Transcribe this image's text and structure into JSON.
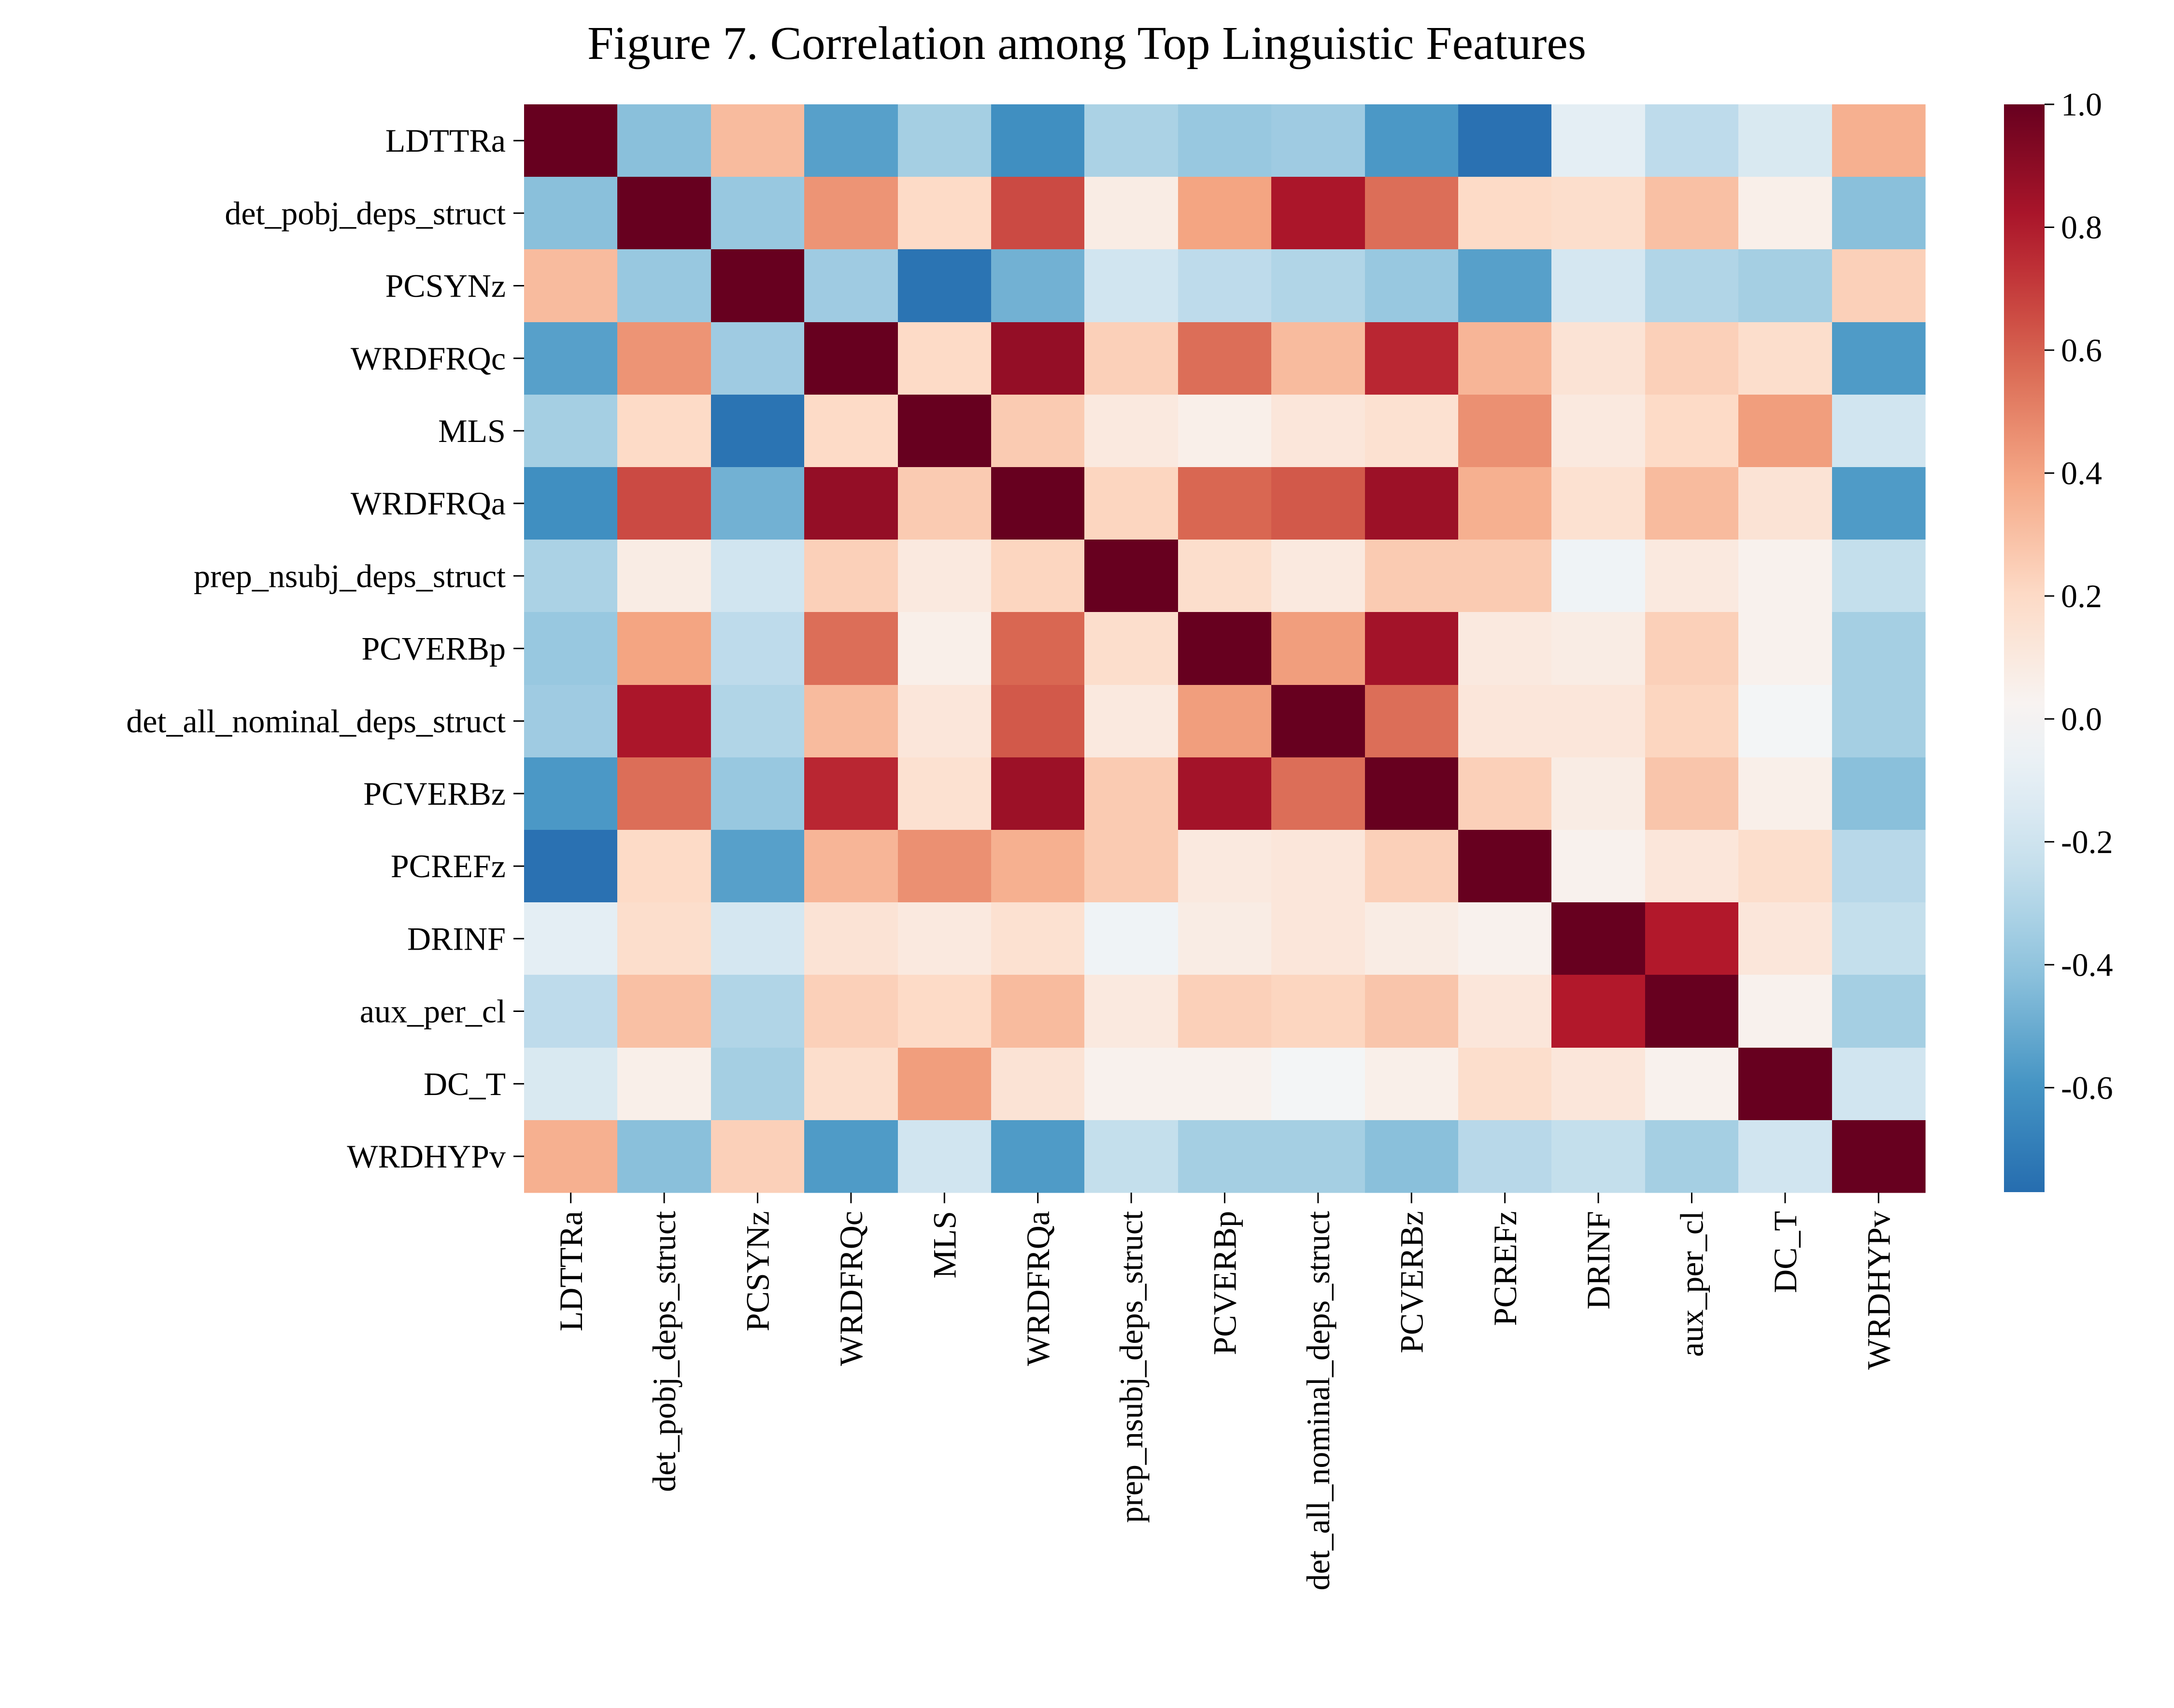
{
  "chart_data": {
    "type": "heatmap",
    "title": "Figure 7. Correlation among Top Linguistic Features",
    "xlabel": "",
    "ylabel": "",
    "labels": [
      "LDTTRa",
      "det_pobj_deps_struct",
      "PCSYNz",
      "WRDFRQc",
      "MLS",
      "WRDFRQa",
      "prep_nsubj_deps_struct",
      "PCVERBp",
      "det_all_nominal_deps_struct",
      "PCVERBz",
      "PCREFz",
      "DRINF",
      "aux_per_cl",
      "DC_T",
      "WRDHYPv"
    ],
    "matrix": [
      [
        1.0,
        -0.42,
        0.32,
        -0.55,
        -0.34,
        -0.62,
        -0.32,
        -0.38,
        -0.36,
        -0.58,
        -0.75,
        -0.1,
        -0.26,
        -0.16,
        0.36
      ],
      [
        -0.42,
        1.0,
        -0.38,
        0.45,
        0.2,
        0.66,
        0.08,
        0.4,
        0.82,
        0.56,
        0.2,
        0.18,
        0.3,
        0.06,
        -0.42
      ],
      [
        0.32,
        -0.38,
        1.0,
        -0.36,
        -0.74,
        -0.48,
        -0.2,
        -0.26,
        -0.3,
        -0.38,
        -0.55,
        -0.18,
        -0.3,
        -0.34,
        0.24
      ],
      [
        -0.55,
        0.45,
        -0.36,
        1.0,
        0.2,
        0.88,
        0.24,
        0.56,
        0.32,
        0.76,
        0.34,
        0.14,
        0.24,
        0.18,
        -0.57
      ],
      [
        -0.34,
        0.2,
        -0.74,
        0.2,
        1.0,
        0.26,
        0.1,
        0.06,
        0.12,
        0.16,
        0.46,
        0.1,
        0.2,
        0.42,
        -0.2
      ],
      [
        -0.62,
        0.66,
        -0.48,
        0.88,
        0.26,
        1.0,
        0.22,
        0.58,
        0.62,
        0.86,
        0.36,
        0.16,
        0.32,
        0.14,
        -0.57
      ],
      [
        -0.32,
        0.08,
        -0.2,
        0.24,
        0.1,
        0.22,
        1.0,
        0.18,
        0.1,
        0.26,
        0.26,
        -0.04,
        0.1,
        0.04,
        -0.24
      ],
      [
        -0.38,
        0.4,
        -0.26,
        0.56,
        0.06,
        0.58,
        0.18,
        1.0,
        0.42,
        0.84,
        0.1,
        0.08,
        0.24,
        0.04,
        -0.34
      ],
      [
        -0.36,
        0.82,
        -0.3,
        0.32,
        0.12,
        0.62,
        0.1,
        0.42,
        1.0,
        0.56,
        0.12,
        0.12,
        0.22,
        -0.02,
        -0.34
      ],
      [
        -0.58,
        0.56,
        -0.38,
        0.76,
        0.16,
        0.86,
        0.26,
        0.84,
        0.56,
        1.0,
        0.24,
        0.08,
        0.28,
        0.06,
        -0.42
      ],
      [
        -0.75,
        0.2,
        -0.55,
        0.34,
        0.46,
        0.36,
        0.26,
        0.1,
        0.12,
        0.24,
        1.0,
        0.04,
        0.12,
        0.18,
        -0.28
      ],
      [
        -0.1,
        0.18,
        -0.18,
        0.14,
        0.1,
        0.16,
        -0.04,
        0.08,
        0.12,
        0.08,
        0.04,
        1.0,
        0.8,
        0.12,
        -0.24
      ],
      [
        -0.26,
        0.3,
        -0.3,
        0.24,
        0.2,
        0.32,
        0.1,
        0.24,
        0.22,
        0.28,
        0.12,
        0.8,
        1.0,
        0.04,
        -0.34
      ],
      [
        -0.16,
        0.06,
        -0.34,
        0.18,
        0.42,
        0.14,
        0.04,
        0.04,
        -0.02,
        0.06,
        0.18,
        0.12,
        0.04,
        1.0,
        -0.2
      ],
      [
        0.36,
        -0.42,
        0.24,
        -0.57,
        -0.2,
        -0.57,
        -0.24,
        -0.34,
        -0.34,
        -0.42,
        -0.28,
        -0.24,
        -0.34,
        -0.2,
        1.0
      ]
    ],
    "vmin": -0.77,
    "vmax": 1.0,
    "colorscale": "RdBu_r",
    "colorbar": {
      "ticks": [
        1.0,
        0.8,
        0.6,
        0.4,
        0.2,
        0.0,
        -0.2,
        -0.4,
        -0.6
      ],
      "tick_labels": [
        "1.0",
        "0.8",
        "0.6",
        "0.4",
        "0.2",
        "0.0",
        "-0.2",
        "-0.4",
        "-0.6"
      ]
    },
    "grid": false,
    "colorbar_placement": "right"
  }
}
